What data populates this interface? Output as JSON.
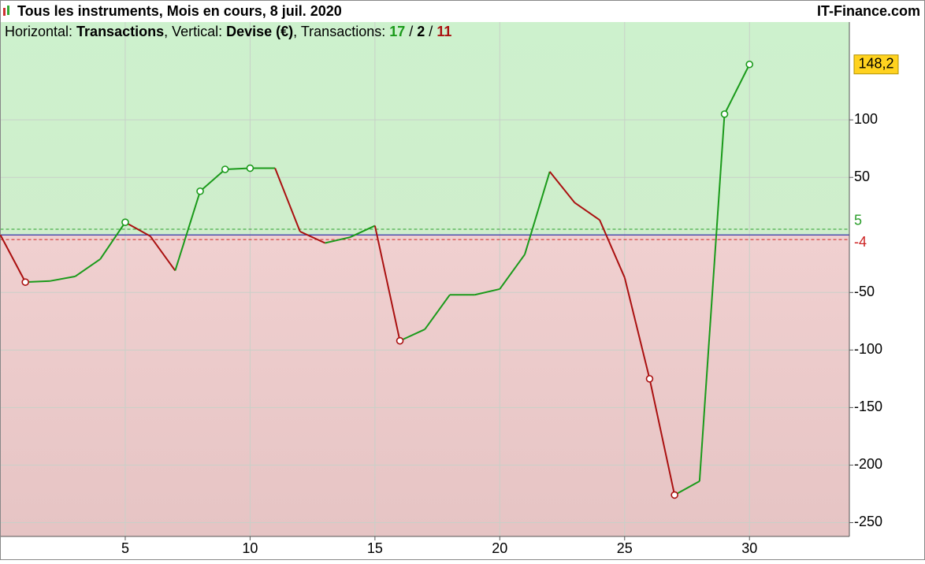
{
  "header": {
    "title": "Tous les instruments, Mois en cours, 8 juil. 2020",
    "brand": "IT-Finance.com"
  },
  "subtitle_parts": [
    {
      "text": "Horizontal: ",
      "bold": false,
      "color": "#000"
    },
    {
      "text": "Transactions",
      "bold": true,
      "color": "#000"
    },
    {
      "text": ", Vertical: ",
      "bold": false,
      "color": "#000"
    },
    {
      "text": "Devise (€)",
      "bold": true,
      "color": "#000"
    },
    {
      "text": ", Transactions: ",
      "bold": false,
      "color": "#000"
    },
    {
      "text": "17",
      "bold": true,
      "color": "#1a9a1a"
    },
    {
      "text": " / ",
      "bold": false,
      "color": "#000"
    },
    {
      "text": "2",
      "bold": true,
      "color": "#000"
    },
    {
      "text": " / ",
      "bold": false,
      "color": "#000"
    },
    {
      "text": "11",
      "bold": true,
      "color": "#aa1010"
    }
  ],
  "chart_data": {
    "type": "line",
    "x": [
      0,
      1,
      2,
      3,
      4,
      5,
      6,
      7,
      8,
      9,
      10,
      11,
      12,
      13,
      14,
      15,
      16,
      17,
      18,
      19,
      20,
      21,
      22,
      23,
      24,
      25,
      26,
      27,
      28,
      29,
      30
    ],
    "values": [
      0,
      -41,
      -40,
      -36,
      -21,
      11,
      -1,
      -31,
      38,
      57,
      58,
      58,
      3,
      -7,
      -2,
      8,
      -92,
      -82,
      -52,
      -52,
      -47,
      -17,
      55,
      28,
      13,
      -37,
      -125,
      -226,
      -214,
      105,
      148.2
    ],
    "value_labels": [
      null,
      null,
      null,
      null,
      null,
      null,
      null,
      null,
      null,
      null,
      null,
      null,
      null,
      null,
      null,
      null,
      null,
      null,
      null,
      null,
      null,
      null,
      null,
      null,
      null,
      null,
      null,
      null,
      null,
      null,
      "148,2"
    ],
    "marker_indices": [
      1,
      5,
      8,
      9,
      10,
      16,
      26,
      27,
      29,
      30
    ],
    "up_color": "#1a9a1a",
    "down_color": "#aa1010",
    "xlim": [
      0,
      34
    ],
    "xticks": [
      5,
      10,
      15,
      20,
      25,
      30
    ],
    "ylim": [
      -262,
      185
    ],
    "yticks": [
      -250,
      -200,
      -150,
      -100,
      -50,
      50,
      100
    ],
    "ref_lines": [
      {
        "value": 5,
        "color": "#2a9d2a"
      },
      {
        "value": -4,
        "color": "#cc2222"
      }
    ],
    "grid": true
  }
}
